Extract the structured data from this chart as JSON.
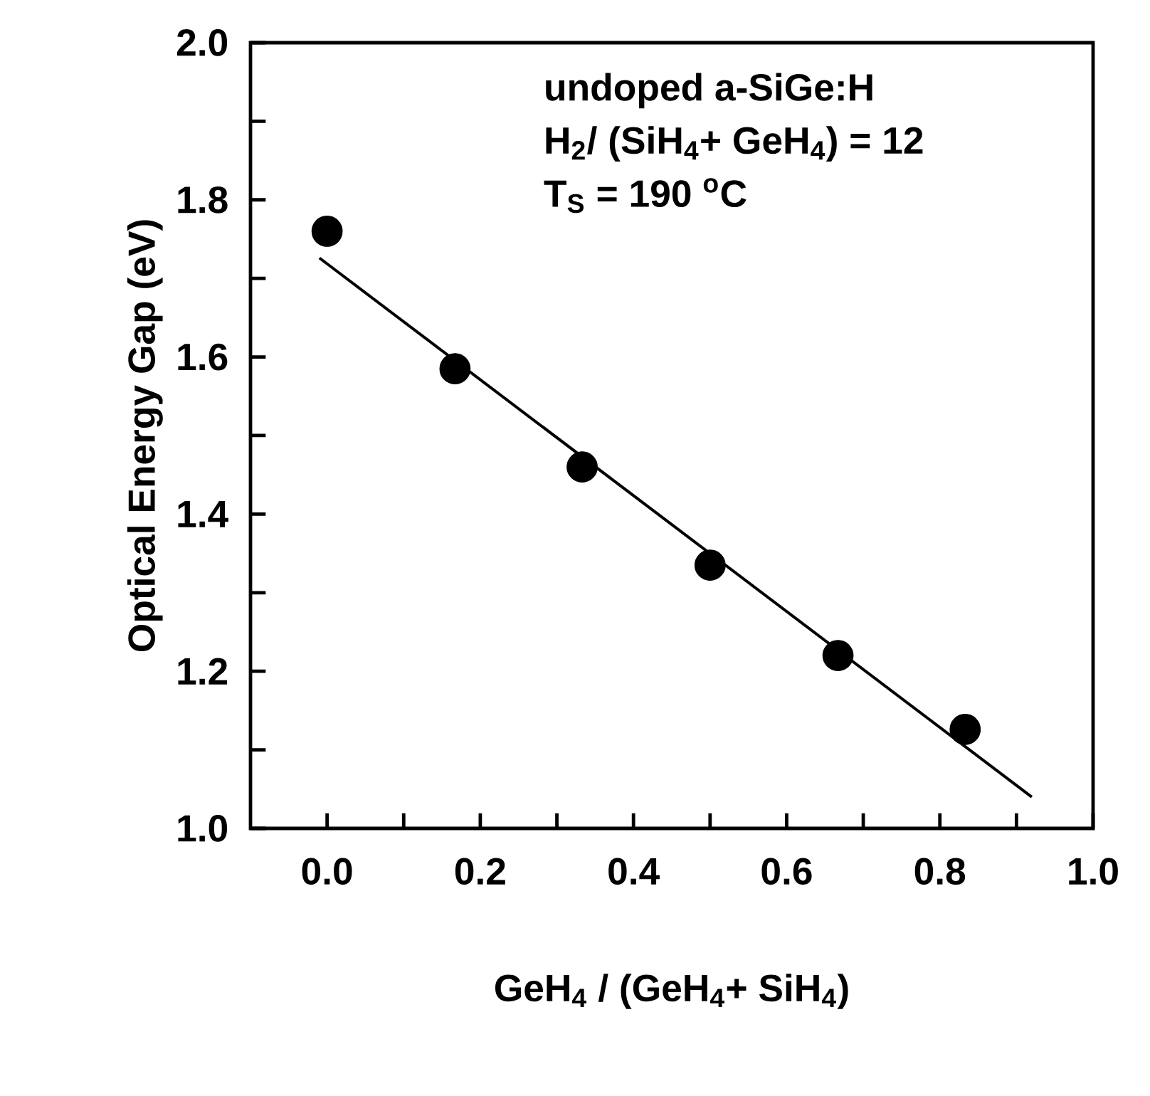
{
  "chart_data": {
    "type": "scatter",
    "xlabel": "GeH$_{4}$ / (GeH$_{4}$+ SiH$_{4}$)",
    "ylabel": "Optical Energy Gap (eV)",
    "xlim": [
      -0.1,
      1.0
    ],
    "ylim": [
      1.0,
      2.0
    ],
    "xticks": [
      {
        "value": 0,
        "label": "0.0"
      },
      {
        "value": 0.2,
        "label": "0.2"
      },
      {
        "value": 0.4,
        "label": "0.4"
      },
      {
        "value": 0.6,
        "label": "0.6"
      },
      {
        "value": 0.8,
        "label": "0.8"
      },
      {
        "value": 1.0,
        "label": "1.0"
      }
    ],
    "yticks": [
      {
        "value": 1.0,
        "label": "1.0"
      },
      {
        "value": 1.2,
        "label": "1.2"
      },
      {
        "value": 1.4,
        "label": "1.4"
      },
      {
        "value": 1.6,
        "label": "1.6"
      },
      {
        "value": 1.8,
        "label": "1.8"
      },
      {
        "value": 2.0,
        "label": "2.0"
      }
    ],
    "series": [
      {
        "color": "#000000",
        "marker": "circle",
        "x": [
          0,
          0.167,
          0.333,
          0.5,
          0.667,
          0.833
        ],
        "values": [
          1.76,
          1.585,
          1.46,
          1.335,
          1.22,
          1.126
        ]
      },
      {
        "type": "line",
        "color": "#000000",
        "marker": "none",
        "line_style": "solid",
        "x": [
          -0.01,
          0.92
        ],
        "values": [
          1.726,
          1.04
        ]
      }
    ],
    "annotations": [
      "undoped a-SiGe:H",
      "H$_{2}$/ (SiH$_{4}$+ GeH$_{4}$) = 12",
      "T$_{S}$ = 190 $^{o}$C"
    ]
  }
}
